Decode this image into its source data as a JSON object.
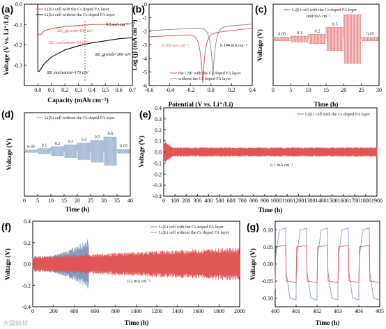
{
  "colors": {
    "red": "#e05555",
    "blue": "#7f9bc2",
    "grey": "#8c8c8c",
    "black": "#000000"
  },
  "watermark": "大国新材",
  "chart_data": [
    {
      "panel": "a",
      "type": "line",
      "xlabel": "Capacity (mAh cm⁻²)",
      "ylabel": "Voltage (V vs. Li⁺/Li)",
      "xlim": [
        -0.1,
        0.7
      ],
      "ylim": [
        -0.4,
        0.0
      ],
      "xticks": [
        0.0,
        0.1,
        0.2,
        0.3,
        0.4,
        0.5,
        0.6,
        0.7
      ],
      "yticks": [
        0.0,
        -0.1,
        -0.2,
        -0.3
      ],
      "series": [
        {
          "name": "Li||Li cell with the Cs doped FA layer",
          "color": "red",
          "x": [
            -0.1,
            0.0,
            0.0,
            0.02,
            0.05,
            0.1,
            0.2,
            0.3,
            0.4,
            0.5,
            0.6,
            0.7
          ],
          "y": [
            0.0,
            0.0,
            -0.15,
            -0.15,
            -0.13,
            -0.12,
            -0.11,
            -0.105,
            -0.1,
            -0.1,
            -0.1,
            -0.095
          ]
        },
        {
          "name": "Li||Li cell without the Cs doped FA layer",
          "color": "black",
          "x": [
            -0.1,
            0.0,
            0.0,
            0.01,
            0.03,
            0.05,
            0.1,
            0.2,
            0.3,
            0.4,
            0.5,
            0.6,
            0.7
          ],
          "y": [
            0.0,
            0.0,
            -0.33,
            -0.33,
            -0.31,
            -0.29,
            -0.26,
            -0.225,
            -0.205,
            -0.19,
            -0.18,
            -0.17,
            -0.165
          ]
        }
      ],
      "annotations": [
        {
          "text": "0.5 mA cm⁻²",
          "color": "black"
        },
        {
          "text": "ΔE_growth=100 mV",
          "color": "red"
        },
        {
          "text": "ΔE_nucleation=50 mV",
          "color": "red"
        },
        {
          "text": "ΔE_growth=200 mV",
          "color": "black"
        },
        {
          "text": "ΔE_nucleation=170 mV",
          "color": "black"
        }
      ]
    },
    {
      "panel": "b",
      "type": "line",
      "xlabel": "Potential (V vs. Li⁺/Li)",
      "ylabel": "Log (j) (mA cm⁻²)",
      "xlim": [
        -0.6,
        0.4
      ],
      "ylim": [
        -6,
        0
      ],
      "xticks": [
        -0.6,
        -0.4,
        -0.2,
        0.0,
        0.2,
        0.4
      ],
      "yticks": [
        0,
        -1,
        -2,
        -3,
        -4,
        -5,
        -6
      ],
      "corrosion_potential": {
        "CSE": -0.08,
        "without": 0.02
      },
      "series": [
        {
          "name": "the CSE with the Cs doped FA layer",
          "color": "red",
          "ecorr": -0.08
        },
        {
          "name": "without the Cs doped FA layer",
          "color": "grey",
          "ecorr": 0.02
        }
      ],
      "annotations": [
        {
          "text": "0.309 mA cm⁻²",
          "color": "red"
        },
        {
          "text": "0.194 mA cm⁻²",
          "color": "black"
        }
      ]
    },
    {
      "panel": "c",
      "type": "line",
      "xlabel": "Time (h)",
      "ylabel": "Voltage (V)",
      "xlim": [
        0,
        30
      ],
      "ylim": [
        -0.8,
        0.6
      ],
      "xticks": [
        0,
        5,
        10,
        15,
        20,
        25,
        30
      ],
      "legend": "Li||Li cell with the Cs doped FA layer",
      "unit_label": "unit:mA cm⁻²",
      "color": "red",
      "segments": [
        {
          "rate": "0.05",
          "start": 0,
          "end": 5,
          "amp": 0.03
        },
        {
          "rate": "0.1",
          "start": 5,
          "end": 10,
          "amp": 0.05
        },
        {
          "rate": "0.2",
          "start": 10,
          "end": 15,
          "amp": 0.08
        },
        {
          "rate": "0.5",
          "start": 15,
          "end": 20,
          "amp": 0.2
        },
        {
          "rate": "1",
          "start": 20,
          "end": 25,
          "amp": 0.42
        },
        {
          "rate": "0.05",
          "start": 25,
          "end": 30,
          "amp": 0.03
        }
      ]
    },
    {
      "panel": "d",
      "type": "line",
      "xlabel": "Time (h)",
      "ylabel": "Voltage (V)",
      "xlim": [
        0,
        40
      ],
      "ylim": [
        -0.7,
        0.6
      ],
      "xticks": [
        0,
        5,
        10,
        15,
        20,
        25,
        30,
        35,
        40
      ],
      "legend": "Li||Li cell without the Cs doped FA layer",
      "color": "blue",
      "segments": [
        {
          "rate": "0.05",
          "start": 0,
          "end": 5,
          "amp": 0.02
        },
        {
          "rate": "0.1",
          "start": 5,
          "end": 10,
          "amp": 0.04
        },
        {
          "rate": "0.2",
          "start": 10,
          "end": 15,
          "amp": 0.07
        },
        {
          "rate": "0.3",
          "start": 15,
          "end": 20,
          "amp": 0.1
        },
        {
          "rate": "0.4",
          "start": 20,
          "end": 25,
          "amp": 0.13
        },
        {
          "rate": "0.5",
          "start": 25,
          "end": 30,
          "amp": 0.17
        },
        {
          "rate": "0.6",
          "start": 30,
          "end": 35,
          "amp": 0.22
        },
        {
          "rate": "0.05",
          "start": 35,
          "end": 40,
          "amp": 0.03
        }
      ]
    },
    {
      "panel": "e",
      "type": "line",
      "xlabel": "Time (h)",
      "ylabel": "Voltage (V)",
      "xlim": [
        0,
        1900
      ],
      "ylim": [
        -0.4,
        0.4
      ],
      "xticks": [
        0,
        100,
        200,
        300,
        400,
        500,
        600,
        700,
        800,
        900,
        1000,
        1100,
        1200,
        1300,
        1400,
        1500,
        1600,
        1700,
        1800,
        1900
      ],
      "yticks": [
        0.4,
        0.3,
        0.2,
        0.1,
        0.0,
        -0.1,
        -0.2,
        -0.3,
        -0.4
      ],
      "legend": "Li||Li cell with the Cs doped FA layer",
      "current_label": "0.1 mA cm⁻²",
      "color": "red",
      "envelope": {
        "initial_amp": 0.09,
        "steady_amp": 0.035
      }
    },
    {
      "panel": "f",
      "type": "line",
      "xlabel": "Time (h)",
      "ylabel": "Voltage (V)",
      "xlim": [
        0,
        2000
      ],
      "ylim": [
        -0.4,
        0.4
      ],
      "xticks": [
        0,
        200,
        400,
        600,
        800,
        1000,
        1200,
        1400,
        1600,
        1800,
        2000
      ],
      "yticks": [
        0.4,
        0.2,
        0.0,
        -0.2,
        -0.4
      ],
      "current_label": "0.2 mA cm⁻²",
      "series": [
        {
          "name": "Li||Li cell with the Cs doped FA layer",
          "color": "red",
          "start_amp": 0.06,
          "end_amp": 0.13,
          "t_end": 2000
        },
        {
          "name": "Li||Li cell without the Cs doped FA layer",
          "color": "blue",
          "start_amp": 0.05,
          "end_amp": 0.2,
          "t_end": 540
        }
      ]
    },
    {
      "panel": "g",
      "type": "line",
      "xlabel": "Time (h)",
      "ylabel": "Voltage (V)",
      "xlim": [
        400,
        405
      ],
      "ylim": [
        -0.125,
        0.125
      ],
      "xticks": [
        400,
        401,
        402,
        403,
        404,
        405
      ],
      "yticks": [
        0.1,
        0.05,
        0.0,
        -0.05,
        -0.1
      ],
      "series": [
        {
          "name": "with Cs doped FA layer",
          "color": "red",
          "plateau": 0.055
        },
        {
          "name": "without Cs doped FA layer",
          "color": "blue",
          "peak": 0.105
        }
      ],
      "period_h": 1
    }
  ]
}
